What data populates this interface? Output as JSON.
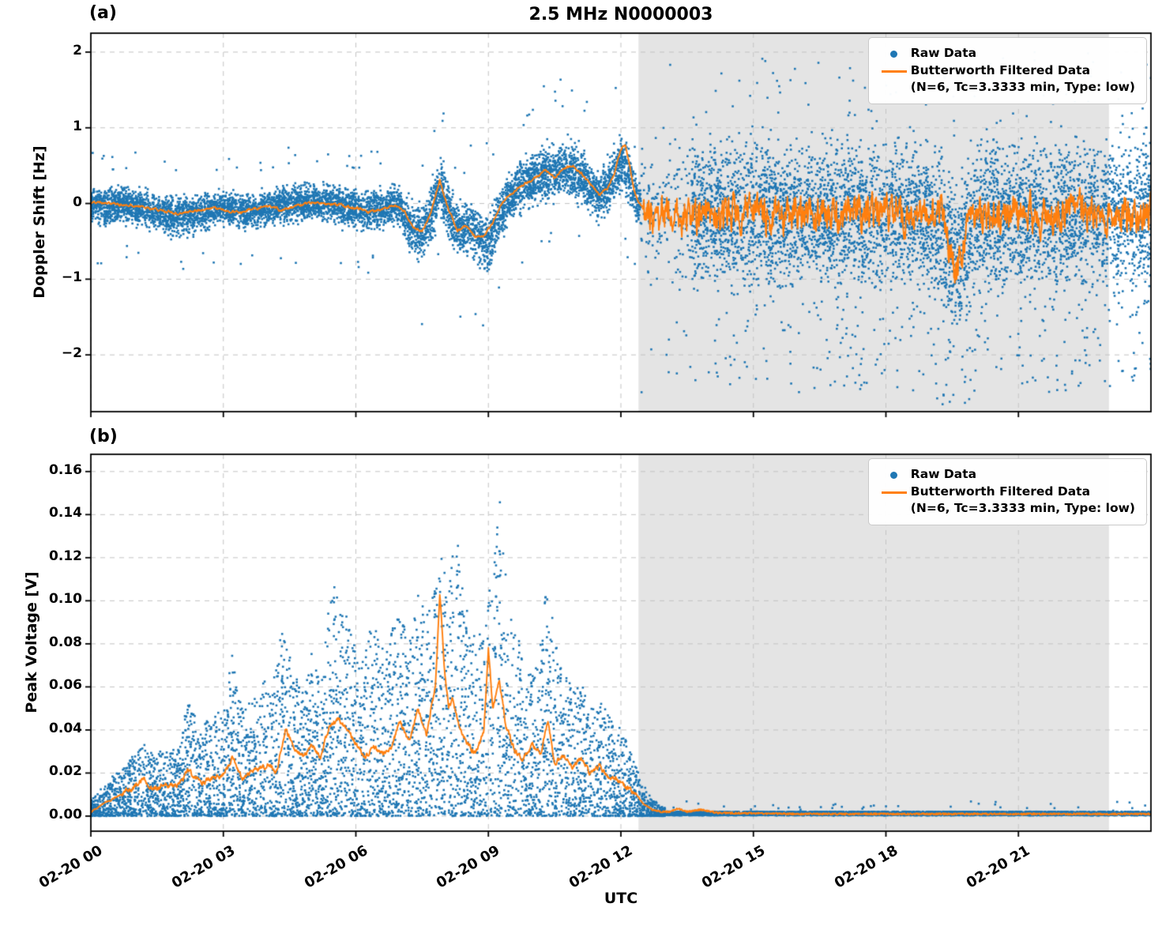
{
  "title": "2.5 MHz N0000003",
  "xlabel": "UTC",
  "legend": {
    "raw": "Raw Data",
    "filtered": "Butterworth Filtered Data",
    "filtered_sub": "(N=6, Tc=3.3333 min, Type: low)",
    "position": "upper right"
  },
  "colors": {
    "raw": "#1f77b4",
    "filtered": "#ff7f0e",
    "shade": "#e4e4e4",
    "grid": "#c3c3c3",
    "spine": "#000000",
    "background": "#ffffff"
  },
  "x_axis": {
    "domain": [
      0,
      24
    ],
    "ticks": [
      0,
      3,
      6,
      9,
      12,
      15,
      18,
      21
    ],
    "tick_labels": [
      "02-20 00",
      "02-20 03",
      "02-20 06",
      "02-20 09",
      "02-20 12",
      "02-20 15",
      "02-20 18",
      "02-20 21"
    ],
    "shaded_region": [
      12.4,
      23.05
    ]
  },
  "chart_data": [
    {
      "id": "a",
      "type": "scatter",
      "panel_label": "(a)",
      "ylabel": "Doppler Shift [Hz]",
      "ylim": [
        -2.75,
        2.25
      ],
      "yticks": [
        -2,
        -1,
        0,
        1,
        2
      ],
      "ytick_labels": [
        "−2",
        "−1",
        "0",
        "1",
        "2"
      ],
      "grid": true,
      "legend_position": "upper right",
      "series": [
        {
          "name": "Raw Data",
          "type": "scatter",
          "color": "#1f77b4"
        },
        {
          "name": "Butterworth Filtered Data (N=6, Tc=3.3333 min, Type: low)",
          "type": "line",
          "color": "#ff7f0e"
        }
      ],
      "raw_band": [
        [
          0,
          0,
          0.28
        ],
        [
          0.3,
          -0.05,
          0.3
        ],
        [
          0.6,
          0,
          0.25
        ],
        [
          1,
          -0.05,
          0.28
        ],
        [
          1.4,
          -0.1,
          0.3
        ],
        [
          1.8,
          -0.18,
          0.32
        ],
        [
          2.2,
          -0.15,
          0.3
        ],
        [
          2.6,
          -0.1,
          0.28
        ],
        [
          3,
          -0.05,
          0.25
        ],
        [
          3.4,
          -0.12,
          0.3
        ],
        [
          3.8,
          -0.08,
          0.28
        ],
        [
          4.2,
          -0.03,
          0.27
        ],
        [
          4.6,
          0,
          0.3
        ],
        [
          5,
          0.02,
          0.26
        ],
        [
          5.4,
          0,
          0.28
        ],
        [
          5.8,
          -0.05,
          0.3
        ],
        [
          6.2,
          -0.1,
          0.32
        ],
        [
          6.6,
          -0.05,
          0.3
        ],
        [
          7,
          -0.02,
          0.3
        ],
        [
          7.25,
          -0.35,
          0.42
        ],
        [
          7.5,
          -0.4,
          0.45
        ],
        [
          7.7,
          -0.15,
          0.4
        ],
        [
          7.9,
          0.25,
          0.5
        ],
        [
          8.1,
          -0.1,
          0.4
        ],
        [
          8.35,
          -0.4,
          0.45
        ],
        [
          8.6,
          -0.3,
          0.42
        ],
        [
          8.85,
          -0.5,
          0.5
        ],
        [
          9.05,
          -0.45,
          0.48
        ],
        [
          9.25,
          -0.15,
          0.4
        ],
        [
          9.5,
          0.1,
          0.4
        ],
        [
          9.8,
          0.25,
          0.42
        ],
        [
          10.1,
          0.35,
          0.45
        ],
        [
          10.4,
          0.4,
          0.45
        ],
        [
          10.7,
          0.45,
          0.45
        ],
        [
          11,
          0.4,
          0.45
        ],
        [
          11.25,
          0.25,
          0.4
        ],
        [
          11.5,
          0.1,
          0.35
        ],
        [
          11.7,
          0.2,
          0.4
        ],
        [
          11.9,
          0.45,
          0.45
        ],
        [
          12.05,
          0.6,
          0.5
        ],
        [
          12.2,
          0.3,
          0.45
        ],
        [
          12.35,
          0.05,
          0.35
        ],
        [
          12.45,
          -0.05,
          0.3
        ]
      ],
      "noisy_region": {
        "start": 12.45,
        "sparse_until": 13.6,
        "center": -0.15,
        "core_up": 1.3,
        "core_down": 1.35,
        "outlier_down_max": 2.35,
        "outlier_up_max": 2.15,
        "dip_t": 19.6,
        "dip_depth": 0.5,
        "dip_width": 0.35
      },
      "filtered_keypoints": [
        [
          0,
          0.02
        ],
        [
          0.4,
          0
        ],
        [
          0.8,
          -0.02
        ],
        [
          1.2,
          -0.04
        ],
        [
          1.6,
          -0.1
        ],
        [
          2,
          -0.13
        ],
        [
          2.4,
          -0.1
        ],
        [
          2.8,
          -0.06
        ],
        [
          3.1,
          -0.1
        ],
        [
          3.4,
          -0.12
        ],
        [
          3.7,
          -0.07
        ],
        [
          4,
          -0.03
        ],
        [
          4.3,
          -0.09
        ],
        [
          4.6,
          -0.04
        ],
        [
          5,
          0.02
        ],
        [
          5.3,
          0
        ],
        [
          5.6,
          -0.02
        ],
        [
          6,
          -0.06
        ],
        [
          6.3,
          -0.11
        ],
        [
          6.6,
          -0.07
        ],
        [
          6.9,
          -0.02
        ],
        [
          7.1,
          -0.1
        ],
        [
          7.3,
          -0.32
        ],
        [
          7.5,
          -0.36
        ],
        [
          7.7,
          -0.12
        ],
        [
          7.9,
          0.3
        ],
        [
          8,
          0.1
        ],
        [
          8.1,
          -0.08
        ],
        [
          8.3,
          -0.36
        ],
        [
          8.5,
          -0.28
        ],
        [
          8.7,
          -0.44
        ],
        [
          8.9,
          -0.42
        ],
        [
          9.1,
          -0.25
        ],
        [
          9.3,
          0
        ],
        [
          9.5,
          0.12
        ],
        [
          9.7,
          0.22
        ],
        [
          9.9,
          0.28
        ],
        [
          10.1,
          0.35
        ],
        [
          10.3,
          0.44
        ],
        [
          10.5,
          0.34
        ],
        [
          10.7,
          0.46
        ],
        [
          10.9,
          0.5
        ],
        [
          11.1,
          0.4
        ],
        [
          11.3,
          0.26
        ],
        [
          11.5,
          0.12
        ],
        [
          11.7,
          0.2
        ],
        [
          11.85,
          0.4
        ],
        [
          12,
          0.72
        ],
        [
          12.1,
          0.78
        ],
        [
          12.2,
          0.5
        ],
        [
          12.3,
          0.18
        ],
        [
          12.4,
          0.02
        ],
        [
          12.5,
          -0.08
        ]
      ],
      "filtered_noise": {
        "start": 12.5,
        "center": -0.15,
        "amplitude": 0.45,
        "dip_t": 19.6,
        "dip_depth": 0.75,
        "dip_width": 0.2
      }
    },
    {
      "id": "b",
      "type": "scatter",
      "panel_label": "(b)",
      "ylabel": "Peak Voltage [V]",
      "ylim": [
        -0.007,
        0.168
      ],
      "yticks": [
        0,
        0.02,
        0.04,
        0.06,
        0.08,
        0.1,
        0.12,
        0.14,
        0.16
      ],
      "ytick_labels": [
        "0.00",
        "0.02",
        "0.04",
        "0.06",
        "0.08",
        "0.10",
        "0.12",
        "0.14",
        "0.16"
      ],
      "grid": true,
      "legend_position": "upper right",
      "series": [
        {
          "name": "Raw Data",
          "type": "scatter",
          "color": "#1f77b4"
        },
        {
          "name": "Butterworth Filtered Data (N=6, Tc=3.3333 min, Type: low)",
          "type": "line",
          "color": "#ff7f0e"
        }
      ],
      "raw_top_envelope": [
        [
          0,
          0.008
        ],
        [
          0.3,
          0.013
        ],
        [
          0.6,
          0.02
        ],
        [
          0.9,
          0.026
        ],
        [
          1.2,
          0.035
        ],
        [
          1.45,
          0.028
        ],
        [
          1.7,
          0.03
        ],
        [
          2,
          0.033
        ],
        [
          2.2,
          0.055
        ],
        [
          2.45,
          0.04
        ],
        [
          2.7,
          0.045
        ],
        [
          3,
          0.052
        ],
        [
          3.2,
          0.075
        ],
        [
          3.45,
          0.048
        ],
        [
          3.7,
          0.055
        ],
        [
          3.9,
          0.065
        ],
        [
          4.1,
          0.06
        ],
        [
          4.35,
          0.088
        ],
        [
          4.6,
          0.065
        ],
        [
          4.8,
          0.06
        ],
        [
          5,
          0.075
        ],
        [
          5.2,
          0.065
        ],
        [
          5.45,
          0.108
        ],
        [
          5.7,
          0.1
        ],
        [
          5.9,
          0.085
        ],
        [
          6.1,
          0.07
        ],
        [
          6.35,
          0.09
        ],
        [
          6.6,
          0.08
        ],
        [
          6.8,
          0.085
        ],
        [
          7,
          0.1
        ],
        [
          7.2,
          0.085
        ],
        [
          7.4,
          0.105
        ],
        [
          7.6,
          0.092
        ],
        [
          7.8,
          0.11
        ],
        [
          7.95,
          0.13
        ],
        [
          8.1,
          0.105
        ],
        [
          8.25,
          0.139
        ],
        [
          8.4,
          0.11
        ],
        [
          8.55,
          0.09
        ],
        [
          8.75,
          0.082
        ],
        [
          8.95,
          0.09
        ],
        [
          9.1,
          0.12
        ],
        [
          9.25,
          0.159
        ],
        [
          9.4,
          0.12
        ],
        [
          9.55,
          0.09
        ],
        [
          9.75,
          0.078
        ],
        [
          9.95,
          0.068
        ],
        [
          10.15,
          0.072
        ],
        [
          10.35,
          0.117
        ],
        [
          10.5,
          0.082
        ],
        [
          10.7,
          0.068
        ],
        [
          10.9,
          0.058
        ],
        [
          11.1,
          0.063
        ],
        [
          11.3,
          0.052
        ],
        [
          11.5,
          0.057
        ],
        [
          11.7,
          0.047
        ],
        [
          11.9,
          0.042
        ],
        [
          12.1,
          0.036
        ],
        [
          12.3,
          0.026
        ],
        [
          12.5,
          0.014
        ],
        [
          12.7,
          0.007
        ],
        [
          12.9,
          0.004
        ],
        [
          13.2,
          0.003
        ],
        [
          14,
          0.0025
        ],
        [
          24,
          0.0025
        ]
      ],
      "quiet_region": {
        "start": 13,
        "level": 0.0012,
        "spread": 0.0018
      },
      "filtered_keypoints": [
        [
          0,
          0.002
        ],
        [
          0.3,
          0.006
        ],
        [
          0.6,
          0.009
        ],
        [
          0.9,
          0.012
        ],
        [
          1.2,
          0.017
        ],
        [
          1.4,
          0.012
        ],
        [
          1.7,
          0.015
        ],
        [
          2,
          0.014
        ],
        [
          2.2,
          0.021
        ],
        [
          2.5,
          0.015
        ],
        [
          2.8,
          0.018
        ],
        [
          3,
          0.02
        ],
        [
          3.2,
          0.027
        ],
        [
          3.4,
          0.018
        ],
        [
          3.6,
          0.02
        ],
        [
          3.8,
          0.022
        ],
        [
          4,
          0.024
        ],
        [
          4.2,
          0.02
        ],
        [
          4.4,
          0.04
        ],
        [
          4.6,
          0.032
        ],
        [
          4.8,
          0.027
        ],
        [
          5,
          0.033
        ],
        [
          5.2,
          0.027
        ],
        [
          5.4,
          0.042
        ],
        [
          5.6,
          0.045
        ],
        [
          5.8,
          0.04
        ],
        [
          6,
          0.034
        ],
        [
          6.2,
          0.027
        ],
        [
          6.4,
          0.033
        ],
        [
          6.6,
          0.029
        ],
        [
          6.8,
          0.031
        ],
        [
          7,
          0.044
        ],
        [
          7.2,
          0.034
        ],
        [
          7.4,
          0.049
        ],
        [
          7.6,
          0.038
        ],
        [
          7.8,
          0.06
        ],
        [
          7.9,
          0.104
        ],
        [
          8,
          0.07
        ],
        [
          8.1,
          0.05
        ],
        [
          8.2,
          0.054
        ],
        [
          8.35,
          0.04
        ],
        [
          8.5,
          0.034
        ],
        [
          8.7,
          0.029
        ],
        [
          8.9,
          0.04
        ],
        [
          9,
          0.079
        ],
        [
          9.1,
          0.05
        ],
        [
          9.25,
          0.063
        ],
        [
          9.4,
          0.042
        ],
        [
          9.6,
          0.03
        ],
        [
          9.8,
          0.027
        ],
        [
          10,
          0.033
        ],
        [
          10.2,
          0.029
        ],
        [
          10.35,
          0.045
        ],
        [
          10.5,
          0.025
        ],
        [
          10.7,
          0.028
        ],
        [
          10.9,
          0.022
        ],
        [
          11.1,
          0.026
        ],
        [
          11.3,
          0.02
        ],
        [
          11.5,
          0.023
        ],
        [
          11.7,
          0.018
        ],
        [
          11.9,
          0.017
        ],
        [
          12.1,
          0.014
        ],
        [
          12.3,
          0.011
        ],
        [
          12.5,
          0.006
        ],
        [
          12.7,
          0.003
        ],
        [
          12.9,
          0.002
        ],
        [
          13.1,
          0.002
        ],
        [
          13.3,
          0.0035
        ],
        [
          13.5,
          0.002
        ],
        [
          13.8,
          0.003
        ],
        [
          14.2,
          0.0015
        ],
        [
          16,
          0.001
        ],
        [
          20,
          0.001
        ],
        [
          24,
          0.001
        ]
      ]
    }
  ]
}
